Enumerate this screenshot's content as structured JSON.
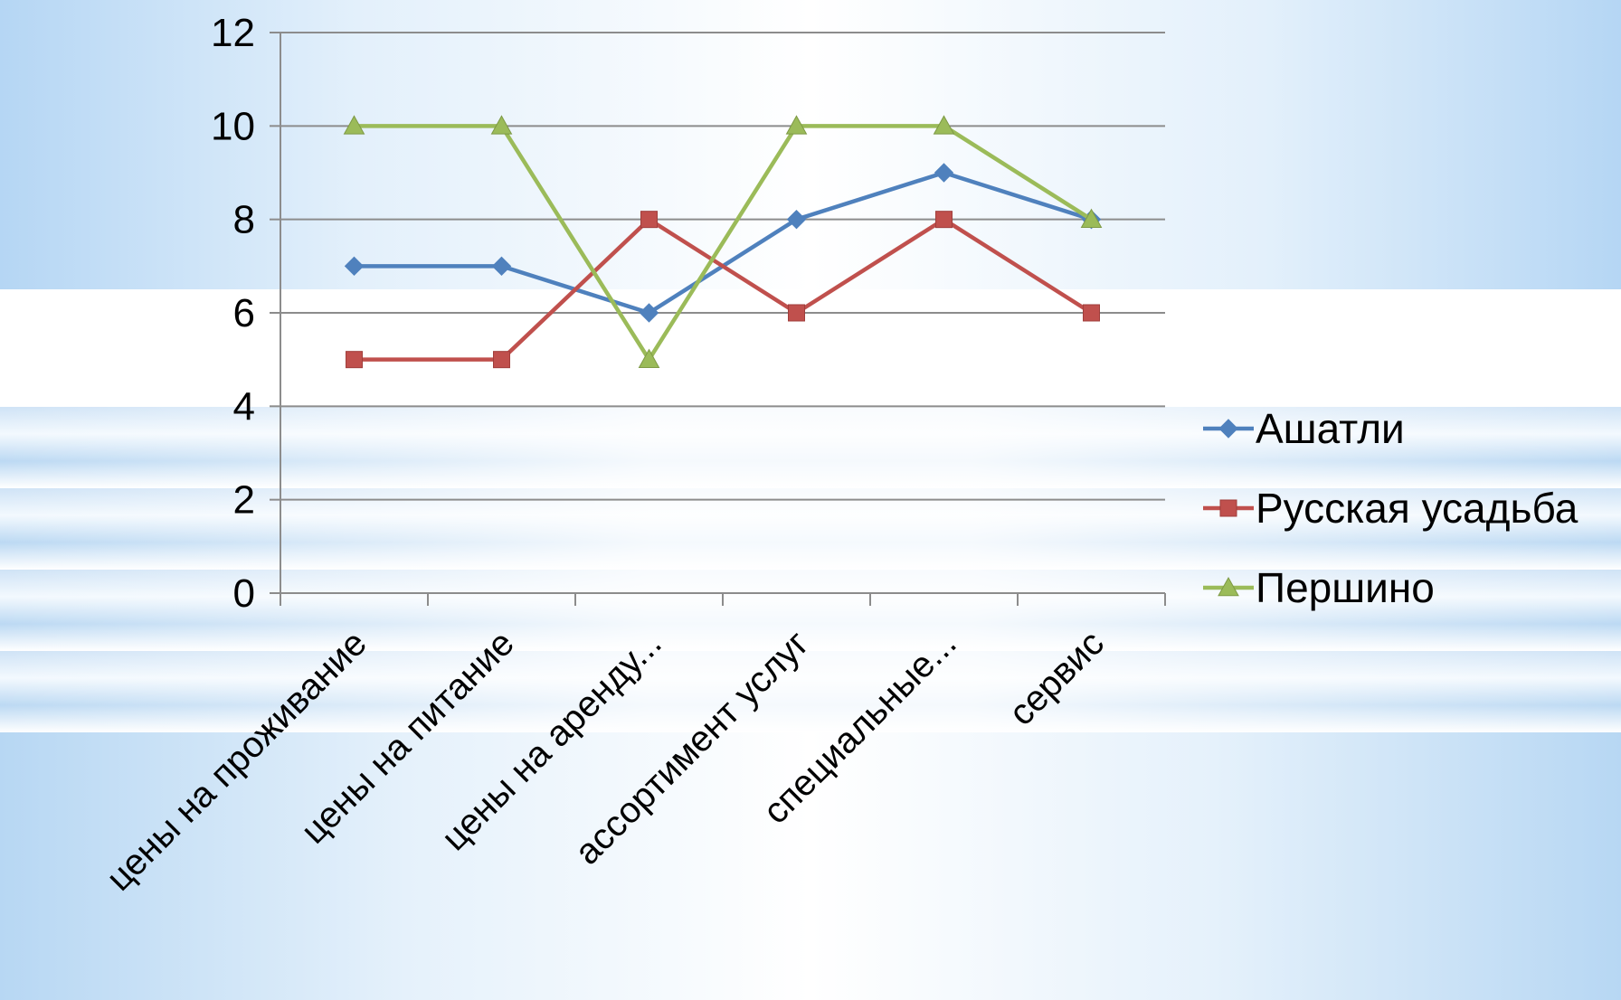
{
  "chart_data": {
    "type": "line",
    "categories": [
      "цены на проживание",
      "цены на питание",
      "цены на аренду...",
      "ассортимент услуг",
      "специальные...",
      "сервис"
    ],
    "series": [
      {
        "name": "Ашатли",
        "values": [
          7,
          7,
          6,
          8,
          9,
          8
        ],
        "color": "#4f81bd",
        "marker": "diamond"
      },
      {
        "name": "Русская усадьба",
        "values": [
          5,
          5,
          8,
          6,
          8,
          6
        ],
        "color": "#c0504d",
        "marker": "square"
      },
      {
        "name": "Першино",
        "values": [
          10,
          10,
          5,
          10,
          10,
          8
        ],
        "color": "#9bbb59",
        "marker": "triangle"
      }
    ],
    "y_ticks": [
      "0",
      "2",
      "4",
      "6",
      "8",
      "10",
      "12"
    ],
    "ylim": [
      0,
      12
    ],
    "grid": true,
    "legend_position": "right",
    "title": "",
    "xlabel": "",
    "ylabel": ""
  }
}
